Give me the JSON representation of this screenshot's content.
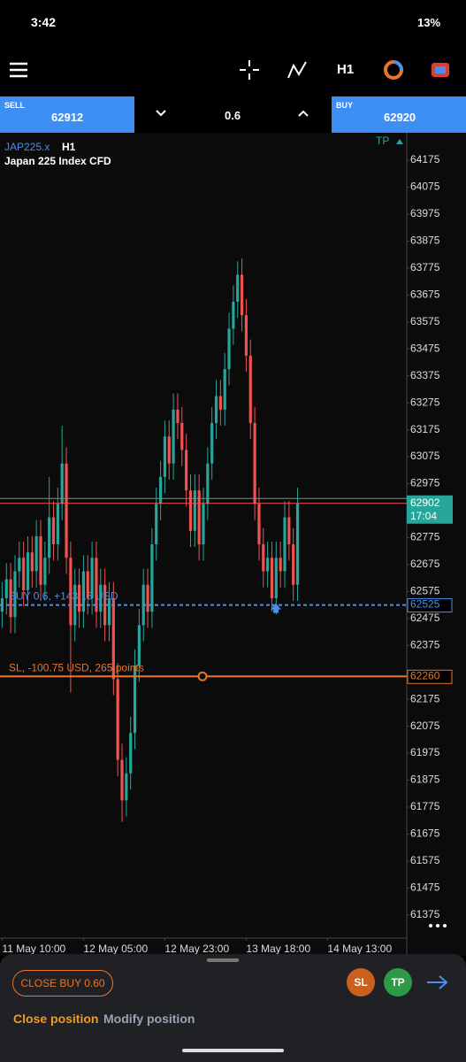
{
  "status_bar": {
    "time": "3:42",
    "battery": "13%"
  },
  "toolbar": {
    "timeframe": "H1"
  },
  "trade_bar": {
    "sell_label": "SELL",
    "sell_price": 62912,
    "volume": "0.6",
    "buy_label": "BUY",
    "buy_price": 62920
  },
  "chart_data": {
    "type": "candlestick",
    "symbol": "JAP225.x",
    "timeframe": "H1",
    "title": "Japan 225 Index CFD",
    "tp_label": "TP",
    "up_color": "#26a69a",
    "down_color": "#ef5350",
    "open": [
      62500,
      62550,
      62620,
      62480,
      62650,
      62700,
      62580,
      62720,
      62650,
      62780,
      62600,
      62700,
      62850,
      62750,
      62900,
      63050,
      62700,
      62450,
      62600,
      62500,
      62650,
      62550,
      62700,
      62500,
      62600,
      62450,
      62550,
      62250,
      61950,
      61800,
      61900,
      62050,
      62300,
      62450,
      62600,
      62500,
      62750,
      62900,
      63000,
      63150,
      63050,
      63250,
      63200,
      63100,
      62950,
      62800,
      62950,
      62750,
      62900,
      63050,
      63200,
      63300,
      63250,
      63400,
      63550,
      63650,
      63750,
      63600,
      63450,
      63200,
      62900,
      62750,
      62650,
      62700,
      62550,
      62700,
      62650,
      62850,
      62750,
      62600
    ],
    "high": [
      62610,
      62680,
      62680,
      62710,
      62760,
      62760,
      62780,
      62780,
      62840,
      62840,
      62760,
      63000,
      62910,
      62960,
      63190,
      63110,
      62760,
      62660,
      62660,
      62710,
      62710,
      62760,
      62760,
      62660,
      62660,
      62610,
      62610,
      62310,
      62010,
      61960,
      62110,
      62360,
      62510,
      62660,
      62660,
      62810,
      62960,
      63060,
      63210,
      63210,
      63310,
      63310,
      63260,
      63160,
      63010,
      63010,
      63010,
      62960,
      63110,
      63260,
      63360,
      63360,
      63460,
      63610,
      63710,
      63800,
      63810,
      63660,
      63510,
      63260,
      62960,
      62810,
      62760,
      62760,
      62760,
      62760,
      62910,
      62910,
      62810,
      62960
    ],
    "low": [
      62440,
      62490,
      62420,
      62420,
      62590,
      62520,
      62520,
      62590,
      62590,
      62540,
      62540,
      62640,
      62690,
      62690,
      62840,
      62640,
      62200,
      62390,
      62440,
      62440,
      62490,
      62490,
      62440,
      62440,
      62390,
      62390,
      62190,
      61890,
      61720,
      61740,
      61840,
      61990,
      62240,
      62390,
      62440,
      62440,
      62690,
      62840,
      62940,
      62990,
      62990,
      63140,
      63040,
      62890,
      62740,
      62740,
      62690,
      62690,
      62840,
      62990,
      63140,
      63190,
      63190,
      63340,
      63490,
      63590,
      63540,
      63390,
      63140,
      62840,
      62690,
      62590,
      62590,
      62500,
      62490,
      62590,
      62590,
      62690,
      62540,
      62540
    ],
    "close": [
      62550,
      62620,
      62480,
      62650,
      62700,
      62580,
      62720,
      62650,
      62780,
      62600,
      62700,
      62850,
      62750,
      62900,
      63050,
      62700,
      62450,
      62600,
      62500,
      62650,
      62550,
      62700,
      62500,
      62600,
      62450,
      62550,
      62250,
      61950,
      61800,
      61900,
      62050,
      62300,
      62450,
      62600,
      62500,
      62750,
      62900,
      63000,
      63150,
      63050,
      63250,
      63200,
      63100,
      62950,
      62800,
      62950,
      62750,
      62900,
      63050,
      63200,
      63300,
      63250,
      63400,
      63550,
      63650,
      63750,
      63600,
      63450,
      63200,
      62900,
      62750,
      62650,
      62700,
      62550,
      62700,
      62650,
      62850,
      62750,
      62600,
      62902
    ],
    "xlim": [
      -0.5,
      94.5
    ],
    "xticks": [
      {
        "value": 0,
        "label": "11 May 10:00"
      },
      {
        "value": 19,
        "label": "12 May 05:00"
      },
      {
        "value": 38,
        "label": "12 May 23:00"
      },
      {
        "value": 57,
        "label": "13 May 18:00"
      },
      {
        "value": 76,
        "label": "14 May 13:00"
      }
    ],
    "ylim": [
      61289,
      64277
    ],
    "yticks": [
      64175,
      64075,
      63975,
      63875,
      63775,
      63675,
      63575,
      63475,
      63375,
      63275,
      63175,
      63075,
      62975,
      62775,
      62675,
      62575,
      62475,
      62375,
      62175,
      62075,
      61975,
      61875,
      61775,
      61675,
      61575,
      61475,
      61375
    ],
    "current_price": {
      "value": 62902,
      "time": "17:04"
    },
    "position": {
      "label": "BUY 0.6, +143.15 USD",
      "price": 62525,
      "color": "#4a8fe8"
    },
    "stop_loss": {
      "label": "SL, -100.75 USD, 265 points",
      "price": 62260,
      "color": "#e8762a"
    }
  },
  "bottom_sheet": {
    "close_button": "CLOSE BUY 0.60",
    "sl": "SL",
    "tp": "TP",
    "tabs": [
      "Close position",
      "Modify position"
    ]
  }
}
